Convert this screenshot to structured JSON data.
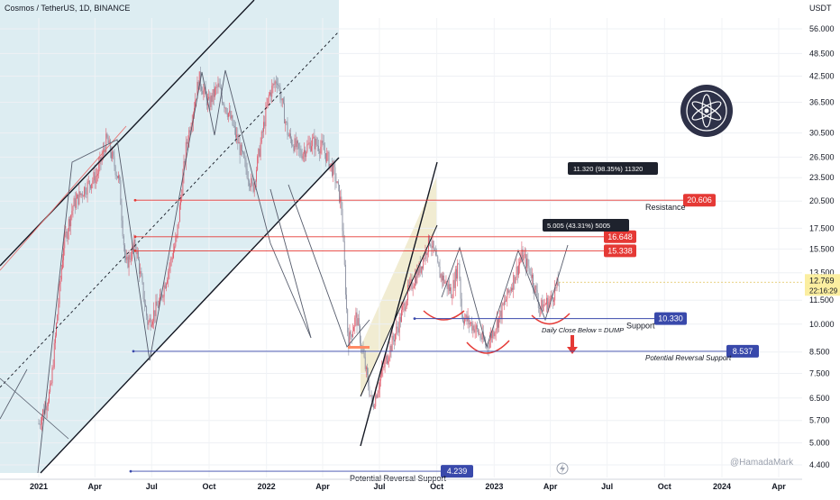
{
  "header": {
    "symbol_title": "Cosmos / TetherUS, 1D, BINANCE",
    "currency": "USDT"
  },
  "watermark": "@HamadaMark",
  "logo": {
    "name": "cosmos-atom-logo",
    "bg": "#2e3148",
    "fg": "#ffffff"
  },
  "colors": {
    "resistance": "#e53935",
    "support": "#3949ab",
    "candle_up": "#e05a6b",
    "candle_down": "#8a8fa0",
    "channel_fill": "#cfe6ec",
    "wedge_fill": "#ede7c7",
    "price_tag": "#fbeea0"
  },
  "chart_data": {
    "type": "candlestick",
    "y_axis": {
      "scale": "log",
      "ticks": [
        "56.000",
        "48.500",
        "42.500",
        "36.500",
        "30.500",
        "26.500",
        "23.500",
        "20.500",
        "17.500",
        "15.500",
        "13.500",
        "11.500",
        "10.000",
        "8.500",
        "7.500",
        "6.500",
        "5.700",
        "5.000",
        "4.400"
      ]
    },
    "x_axis": {
      "ticks": [
        "2021",
        "Apr",
        "Jul",
        "Oct",
        "2022",
        "Apr",
        "Jul",
        "Oct",
        "2023",
        "Apr",
        "Jul",
        "Oct",
        "2024",
        "Apr"
      ]
    },
    "price_path": [
      [
        "2021-01-01",
        5.6
      ],
      [
        "2021-01-20",
        6.8
      ],
      [
        "2021-02-10",
        16.0
      ],
      [
        "2021-02-25",
        20.0
      ],
      [
        "2021-03-15",
        22.0
      ],
      [
        "2021-04-05",
        24.0
      ],
      [
        "2021-04-20",
        29.5
      ],
      [
        "2021-05-10",
        23.0
      ],
      [
        "2021-05-20",
        14.0
      ],
      [
        "2021-06-05",
        16.0
      ],
      [
        "2021-06-25",
        10.0
      ],
      [
        "2021-07-15",
        11.5
      ],
      [
        "2021-08-10",
        16.5
      ],
      [
        "2021-08-25",
        28.0
      ],
      [
        "2021-09-15",
        42.0
      ],
      [
        "2021-09-30",
        36.0
      ],
      [
        "2021-10-15",
        40.0
      ],
      [
        "2021-11-05",
        33.0
      ],
      [
        "2021-11-25",
        26.0
      ],
      [
        "2021-12-10",
        22.0
      ],
      [
        "2022-01-05",
        38.0
      ],
      [
        "2022-01-18",
        42.0
      ],
      [
        "2022-02-05",
        30.0
      ],
      [
        "2022-02-25",
        27.0
      ],
      [
        "2022-03-15",
        29.0
      ],
      [
        "2022-04-01",
        28.0
      ],
      [
        "2022-04-20",
        24.0
      ],
      [
        "2022-05-01",
        20.0
      ],
      [
        "2022-05-12",
        9.0
      ],
      [
        "2022-05-25",
        10.5
      ],
      [
        "2022-06-10",
        7.5
      ],
      [
        "2022-06-20",
        6.2
      ],
      [
        "2022-07-10",
        8.0
      ],
      [
        "2022-08-01",
        10.0
      ],
      [
        "2022-08-15",
        12.0
      ],
      [
        "2022-09-05",
        14.0
      ],
      [
        "2022-09-20",
        16.5
      ],
      [
        "2022-10-05",
        13.5
      ],
      [
        "2022-10-25",
        12.0
      ],
      [
        "2022-11-05",
        14.5
      ],
      [
        "2022-11-10",
        10.5
      ],
      [
        "2022-12-01",
        9.8
      ],
      [
        "2022-12-20",
        8.8
      ],
      [
        "2023-01-10",
        10.5
      ],
      [
        "2023-02-01",
        13.0
      ],
      [
        "2023-02-15",
        15.0
      ],
      [
        "2023-03-01",
        13.5
      ],
      [
        "2023-03-15",
        11.0
      ],
      [
        "2023-04-01",
        11.5
      ],
      [
        "2023-04-15",
        12.769
      ]
    ],
    "horizontal_levels": [
      {
        "name": "Resistance",
        "value": "20.606",
        "color": "#e53935"
      },
      {
        "name": "",
        "value": "16.648",
        "color": "#e53935"
      },
      {
        "name": "",
        "value": "15.338",
        "color": "#e53935"
      },
      {
        "name": "Support",
        "value": "10.330",
        "color": "#3949ab"
      },
      {
        "name": "Potential Reversal Support",
        "value": "8.537",
        "color": "#3949ab"
      },
      {
        "name": "Potential Reversal Support",
        "value": "4.239",
        "color": "#3949ab"
      }
    ],
    "current_price": {
      "value": "12.769",
      "countdown": "22:16:29"
    },
    "measure_labels": [
      "11.320 (98.35%) 11320",
      "5.005 (43.31%) 5005"
    ],
    "annotation": "Daily Close Below = DUMP"
  }
}
